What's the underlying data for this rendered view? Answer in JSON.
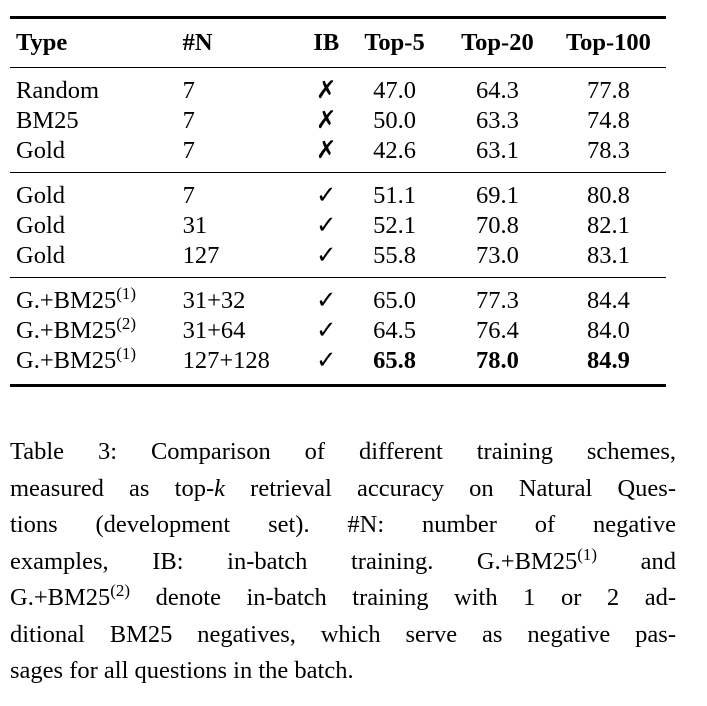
{
  "table": {
    "headers": [
      "Type",
      "#N",
      "IB",
      "Top-5",
      "Top-20",
      "Top-100"
    ],
    "groups": [
      [
        {
          "type": "Random",
          "sup": "",
          "n": "7",
          "ib": "✗",
          "top5": "47.0",
          "top20": "64.3",
          "top100": "77.8"
        },
        {
          "type": "BM25",
          "sup": "",
          "n": "7",
          "ib": "✗",
          "top5": "50.0",
          "top20": "63.3",
          "top100": "74.8"
        },
        {
          "type": "Gold",
          "sup": "",
          "n": "7",
          "ib": "✗",
          "top5": "42.6",
          "top20": "63.1",
          "top100": "78.3"
        }
      ],
      [
        {
          "type": "Gold",
          "sup": "",
          "n": "7",
          "ib": "✓",
          "top5": "51.1",
          "top20": "69.1",
          "top100": "80.8"
        },
        {
          "type": "Gold",
          "sup": "",
          "n": "31",
          "ib": "✓",
          "top5": "52.1",
          "top20": "70.8",
          "top100": "82.1"
        },
        {
          "type": "Gold",
          "sup": "",
          "n": "127",
          "ib": "✓",
          "top5": "55.8",
          "top20": "73.0",
          "top100": "83.1"
        }
      ],
      [
        {
          "type": "G.+BM25",
          "sup": "(1)",
          "n": "31+32",
          "ib": "✓",
          "top5": "65.0",
          "top20": "77.3",
          "top100": "84.4"
        },
        {
          "type": "G.+BM25",
          "sup": "(2)",
          "n": "31+64",
          "ib": "✓",
          "top5": "64.5",
          "top20": "76.4",
          "top100": "84.0"
        },
        {
          "type": "G.+BM25",
          "sup": "(1)",
          "n": "127+128",
          "ib": "✓",
          "top5": "65.8",
          "top20": "78.0",
          "top100": "84.9"
        }
      ]
    ]
  },
  "caption": {
    "lines": [
      "Table 3:  Comparison of different training schemes,",
      "measured as top-",
      "k",
      " retrieval accuracy on Natural Ques-",
      "tions (development set).    #N: number of negative",
      "examples, IB: in-batch training.   G.+BM25",
      "(1)",
      " and",
      "G.+BM25",
      "(2)",
      " denote in-batch training with 1 or 2 ad-",
      "ditional BM25 negatives, which serve as negative pas-",
      "sages for all questions in the batch."
    ]
  }
}
